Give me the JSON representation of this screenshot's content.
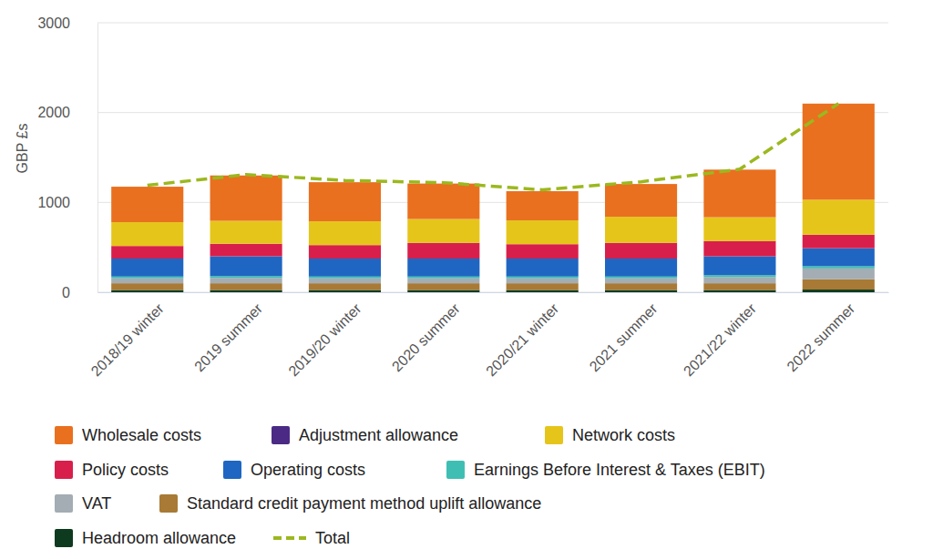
{
  "chart_data": {
    "type": "bar",
    "stacked": true,
    "grid": true,
    "legend": "bottom",
    "y_label": "GBP £s",
    "categories": [
      "2018/19 winter",
      "2019 summer",
      "2019/20 winter",
      "2020 summer",
      "2020/21 winter",
      "2021 summer",
      "2021/22 winter",
      "2022 summer"
    ],
    "ylim": [
      0,
      3000
    ],
    "yticks": [
      0,
      1000,
      2000,
      3000
    ],
    "series": [
      {
        "name": "Wholesale costs",
        "type": "bar",
        "color": "#e9701f",
        "values": [
          395,
          505,
          435,
          395,
          325,
          365,
          530,
          1070
        ]
      },
      {
        "name": "Adjustment allowance",
        "type": "bar",
        "color": "#4b2a85",
        "values": [
          0,
          0,
          0,
          0,
          0,
          0,
          0,
          0
        ]
      },
      {
        "name": "Network costs",
        "type": "bar",
        "color": "#e6c51b",
        "values": [
          265,
          255,
          265,
          265,
          265,
          290,
          265,
          390
        ]
      },
      {
        "name": "Policy costs",
        "type": "bar",
        "color": "#d81f4b",
        "values": [
          140,
          140,
          150,
          175,
          160,
          175,
          170,
          150
        ]
      },
      {
        "name": "Operating costs",
        "type": "bar",
        "color": "#1f66c2",
        "values": [
          200,
          220,
          200,
          200,
          200,
          200,
          210,
          200
        ]
      },
      {
        "name": "Earnings Before Interest & Taxes (EBIT)",
        "type": "bar",
        "color": "#3fbfb3",
        "values": [
          20,
          20,
          20,
          20,
          20,
          20,
          20,
          25
        ]
      },
      {
        "name": "VAT",
        "type": "bar",
        "color": "#a3adb3",
        "values": [
          55,
          60,
          55,
          55,
          55,
          55,
          70,
          120
        ]
      },
      {
        "name": "Standard credit payment method uplift allowance",
        "type": "bar",
        "color": "#a87a35",
        "values": [
          75,
          75,
          75,
          75,
          75,
          75,
          75,
          115
        ]
      },
      {
        "name": "Headroom allowance",
        "type": "bar",
        "color": "#0e3b1f",
        "values": [
          25,
          25,
          25,
          25,
          25,
          25,
          25,
          30
        ]
      },
      {
        "name": "Total",
        "type": "line",
        "line_style": "dashed",
        "color": "#9bb81f",
        "values": [
          1190,
          1310,
          1245,
          1220,
          1140,
          1230,
          1370,
          2100
        ]
      }
    ]
  }
}
